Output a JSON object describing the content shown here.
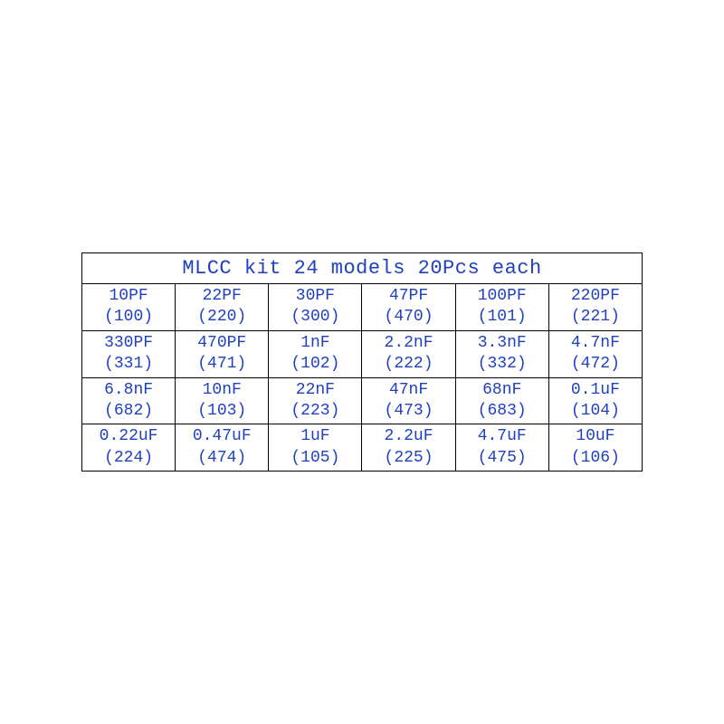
{
  "table": {
    "title": "MLCC kit 24 models 20Pcs each",
    "title_color": "#2040c0",
    "title_fontsize": 22,
    "cell_color": "#2040c0",
    "cell_fontsize": 18,
    "border_color": "#000000",
    "background_color": "#ffffff",
    "columns": 6,
    "rows": [
      [
        {
          "value": "10PF",
          "code": "(100)"
        },
        {
          "value": "22PF",
          "code": "(220)"
        },
        {
          "value": "30PF",
          "code": "(300)"
        },
        {
          "value": "47PF",
          "code": "(470)"
        },
        {
          "value": "100PF",
          "code": "(101)"
        },
        {
          "value": "220PF",
          "code": "(221)"
        }
      ],
      [
        {
          "value": "330PF",
          "code": "(331)"
        },
        {
          "value": "470PF",
          "code": "(471)"
        },
        {
          "value": "1nF",
          "code": "(102)"
        },
        {
          "value": "2.2nF",
          "code": "(222)"
        },
        {
          "value": "3.3nF",
          "code": "(332)"
        },
        {
          "value": "4.7nF",
          "code": "(472)"
        }
      ],
      [
        {
          "value": "6.8nF",
          "code": "(682)"
        },
        {
          "value": "10nF",
          "code": "(103)"
        },
        {
          "value": "22nF",
          "code": "(223)"
        },
        {
          "value": "47nF",
          "code": "(473)"
        },
        {
          "value": "68nF",
          "code": "(683)"
        },
        {
          "value": "0.1uF",
          "code": "(104)"
        }
      ],
      [
        {
          "value": "0.22uF",
          "code": "(224)"
        },
        {
          "value": "0.47uF",
          "code": "(474)"
        },
        {
          "value": "1uF",
          "code": "(105)"
        },
        {
          "value": "2.2uF",
          "code": "(225)"
        },
        {
          "value": "4.7uF",
          "code": "(475)"
        },
        {
          "value": "10uF",
          "code": "(106)"
        }
      ]
    ]
  }
}
